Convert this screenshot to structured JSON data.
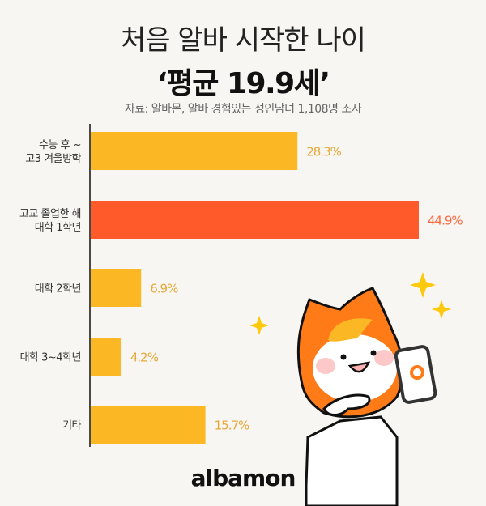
{
  "title_line1": "처음 알바 시작한 나이",
  "title_line2": "‘평균 19.9세’",
  "source": "자료: 알바몬, 알바 경험있는 성인남녀 1,108명 조사",
  "logo": "albamon",
  "chart_data": {
    "type": "bar",
    "orientation": "horizontal",
    "title": "처음 알바 시작한 나이 ‘평균 19.9세’",
    "categories": [
      [
        "수능 후 ~",
        "고3 겨울방학"
      ],
      [
        "고교 졸업한 해",
        "대학 1학년"
      ],
      [
        "대학 2학년"
      ],
      [
        "대학 3~4학년"
      ],
      [
        "기타"
      ]
    ],
    "values": [
      28.3,
      44.9,
      6.9,
      4.2,
      15.7
    ],
    "value_labels": [
      "28.3%",
      "44.9%",
      "6.9%",
      "4.2%",
      "15.7%"
    ],
    "highlight_index": 1,
    "unit": "%",
    "xlim": [
      0,
      45
    ],
    "colors": {
      "bar": "#fbb824",
      "highlight": "#ff5a2a",
      "label": "#e7a93a",
      "highlight_label": "#ff6a40"
    }
  }
}
